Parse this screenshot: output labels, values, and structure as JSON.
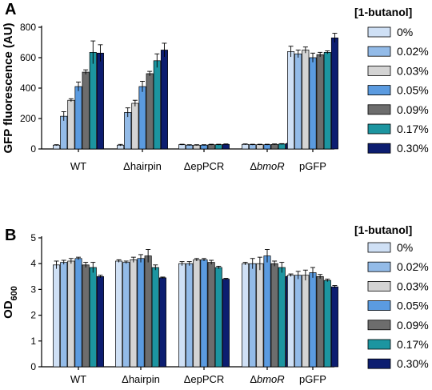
{
  "chart_data": [
    {
      "type": "bar",
      "panel_letter": "A",
      "ylabel": "GFP fluorescence (AU)",
      "xlabel": "",
      "ylim": [
        0,
        800
      ],
      "yticks": [
        "0",
        "200",
        "400",
        "600",
        "800"
      ],
      "categories": [
        {
          "prefix": "",
          "name": "WT",
          "italic": false
        },
        {
          "prefix": "Δ",
          "name": "hairpin",
          "italic": false
        },
        {
          "prefix": "Δ",
          "name": "epPCR",
          "italic": false
        },
        {
          "prefix": "Δ",
          "name": "bmoR",
          "italic": true
        },
        {
          "prefix": "",
          "name": "pGFP",
          "italic": false
        }
      ],
      "legend_title": "[1-butanol]",
      "legend_position": "right",
      "grid": false,
      "series": [
        {
          "name": "0%",
          "color": "#cfe0f5",
          "values": [
            25,
            25,
            28,
            30,
            640
          ],
          "errors": [
            3,
            5,
            3,
            3,
            35
          ]
        },
        {
          "name": "0.02%",
          "color": "#93bbe8",
          "values": [
            215,
            240,
            25,
            28,
            625
          ],
          "errors": [
            30,
            30,
            3,
            3,
            25
          ]
        },
        {
          "name": "0.03%",
          "color": "#d4d4d4",
          "values": [
            320,
            300,
            25,
            28,
            650
          ],
          "errors": [
            10,
            20,
            3,
            3,
            20
          ]
        },
        {
          "name": "0.05%",
          "color": "#5b9be0",
          "values": [
            410,
            410,
            25,
            28,
            600
          ],
          "errors": [
            30,
            35,
            3,
            3,
            30
          ]
        },
        {
          "name": "0.09%",
          "color": "#6d6d6d",
          "values": [
            505,
            495,
            28,
            30,
            620
          ],
          "errors": [
            15,
            15,
            3,
            3,
            15
          ]
        },
        {
          "name": "0.17%",
          "color": "#1c95a0",
          "values": [
            635,
            580,
            28,
            32,
            635
          ],
          "errors": [
            75,
            45,
            3,
            3,
            10
          ]
        },
        {
          "name": "0.30%",
          "color": "#0c1d70",
          "values": [
            630,
            650,
            30,
            35,
            730
          ],
          "errors": [
            55,
            45,
            3,
            3,
            30
          ]
        }
      ]
    },
    {
      "type": "bar",
      "panel_letter": "B",
      "ylabel": "OD",
      "ylabel_sub": "600",
      "xlabel": "",
      "ylim": [
        0,
        5
      ],
      "yticks": [
        "0",
        "1",
        "2",
        "3",
        "4",
        "5"
      ],
      "categories": [
        {
          "prefix": "",
          "name": "WT",
          "italic": false
        },
        {
          "prefix": "Δ",
          "name": "hairpin",
          "italic": false
        },
        {
          "prefix": "Δ",
          "name": "epPCR",
          "italic": false
        },
        {
          "prefix": "Δ",
          "name": "bmoR",
          "italic": true
        },
        {
          "prefix": "",
          "name": "pGFP",
          "italic": false
        }
      ],
      "legend_title": "[1-butanol]",
      "legend_position": "right",
      "grid": false,
      "series": [
        {
          "name": "0%",
          "color": "#cfe0f5",
          "values": [
            3.95,
            4.1,
            4.0,
            4.0,
            3.55
          ],
          "errors": [
            0.15,
            0.05,
            0.08,
            0.05,
            0.05
          ]
        },
        {
          "name": "0.02%",
          "color": "#93bbe8",
          "values": [
            4.05,
            4.05,
            4.0,
            4.0,
            3.55
          ],
          "errors": [
            0.08,
            0.05,
            0.08,
            0.2,
            0.15
          ]
        },
        {
          "name": "0.03%",
          "color": "#d4d4d4",
          "values": [
            4.1,
            4.15,
            4.15,
            4.0,
            3.55
          ],
          "errors": [
            0.1,
            0.1,
            0.05,
            0.25,
            0.2
          ]
        },
        {
          "name": "0.05%",
          "color": "#5b9be0",
          "values": [
            4.2,
            4.2,
            4.15,
            4.3,
            3.65
          ],
          "errors": [
            0.05,
            0.15,
            0.05,
            0.25,
            0.2
          ]
        },
        {
          "name": "0.09%",
          "color": "#6d6d6d",
          "values": [
            3.95,
            4.3,
            4.05,
            4.0,
            3.5
          ],
          "errors": [
            0.1,
            0.25,
            0.08,
            0.1,
            0.08
          ]
        },
        {
          "name": "0.17%",
          "color": "#1c95a0",
          "values": [
            3.85,
            3.85,
            3.85,
            3.85,
            3.35
          ],
          "errors": [
            0.2,
            0.1,
            0.05,
            0.2,
            0.05
          ]
        },
        {
          "name": "0.30%",
          "color": "#0c1d70",
          "values": [
            3.5,
            3.45,
            3.4,
            3.5,
            3.1
          ],
          "errors": [
            0.05,
            0.03,
            0.03,
            0.03,
            0.05
          ]
        }
      ]
    }
  ]
}
